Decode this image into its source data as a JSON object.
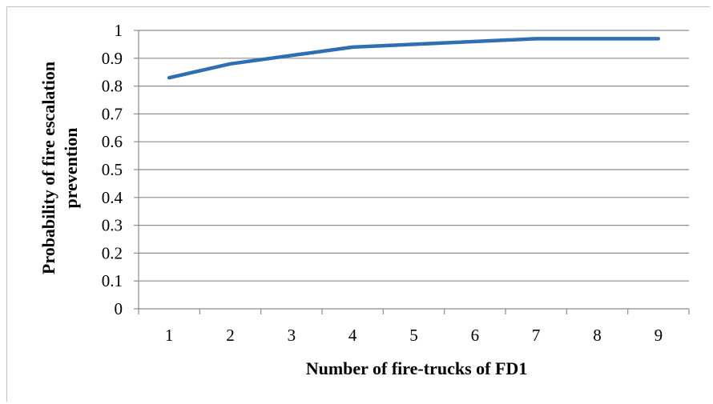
{
  "chart_data": {
    "type": "line",
    "title": "",
    "xlabel": "Number of fire-trucks of FD1",
    "ylabel_lines": [
      "Probability of fire escalation",
      "prevention"
    ],
    "x": [
      1,
      2,
      3,
      4,
      5,
      6,
      7,
      8,
      9
    ],
    "x_tick_labels": [
      "1",
      "2",
      "3",
      "4",
      "5",
      "6",
      "7",
      "8",
      "9"
    ],
    "y_tick_labels": [
      "0",
      "0.1",
      "0.2",
      "0.3",
      "0.4",
      "0.5",
      "0.6",
      "0.7",
      "0.8",
      "0.9",
      "1"
    ],
    "y_ticks": [
      0,
      0.1,
      0.2,
      0.3,
      0.4,
      0.5,
      0.6,
      0.7,
      0.8,
      0.9,
      1
    ],
    "ylim": [
      0,
      1
    ],
    "grid": "horizontal",
    "legend": "none",
    "series": [
      {
        "values": [
          0.83,
          0.88,
          0.91,
          0.94,
          0.95,
          0.96,
          0.97,
          0.97,
          0.97
        ],
        "color": "#2f6eb5"
      }
    ]
  }
}
